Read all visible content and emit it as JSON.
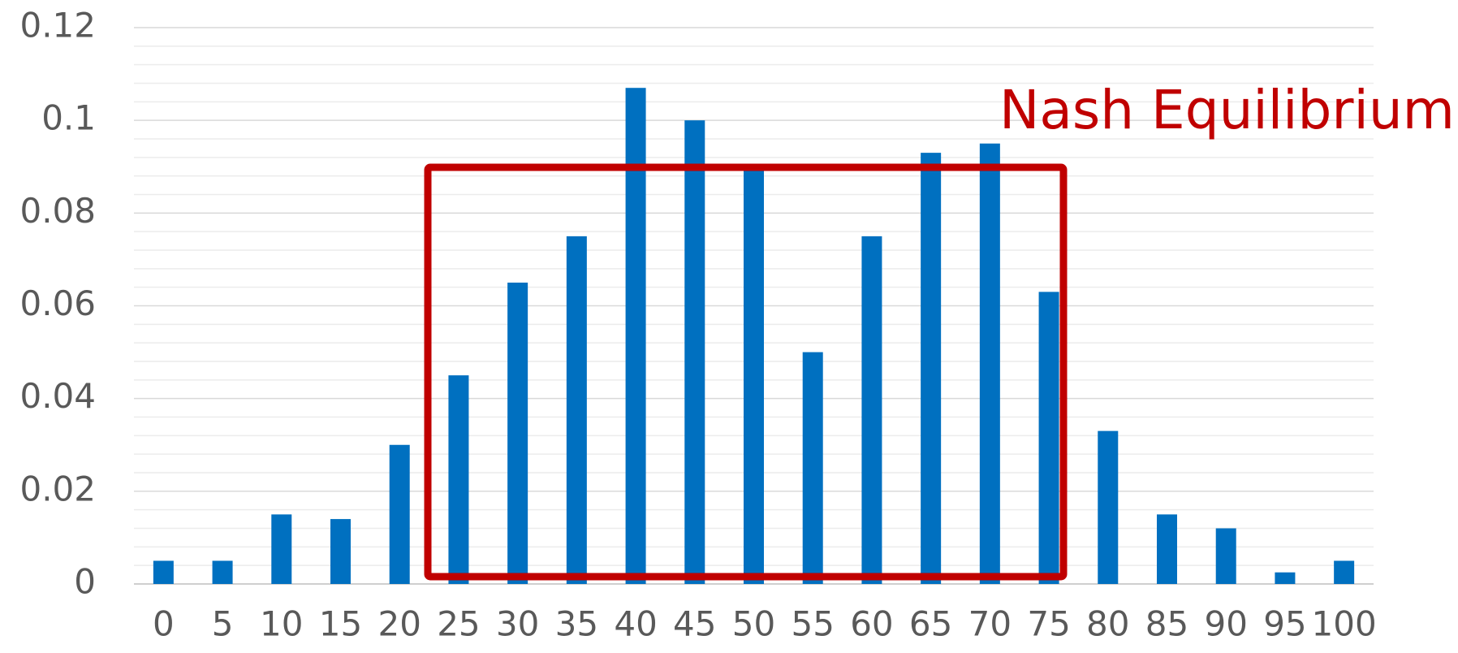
{
  "chart_data": {
    "type": "bar",
    "annotation": "Nash Equilibrium",
    "categories": [
      "0",
      "5",
      "10",
      "15",
      "20",
      "25",
      "30",
      "35",
      "40",
      "45",
      "50",
      "55",
      "60",
      "65",
      "70",
      "75",
      "80",
      "85",
      "90",
      "95",
      "100"
    ],
    "values": [
      0.005,
      0.005,
      0.015,
      0.014,
      0.03,
      0.045,
      0.065,
      0.075,
      0.107,
      0.1,
      0.09,
      0.05,
      0.075,
      0.093,
      0.095,
      0.063,
      0.033,
      0.015,
      0.012,
      0.0025,
      0.005
    ],
    "color": "#0070c0",
    "ylim": [
      0,
      0.12
    ],
    "yticks": [
      0,
      0.02,
      0.04,
      0.06,
      0.08,
      0.1,
      0.12
    ],
    "grid": true
  }
}
